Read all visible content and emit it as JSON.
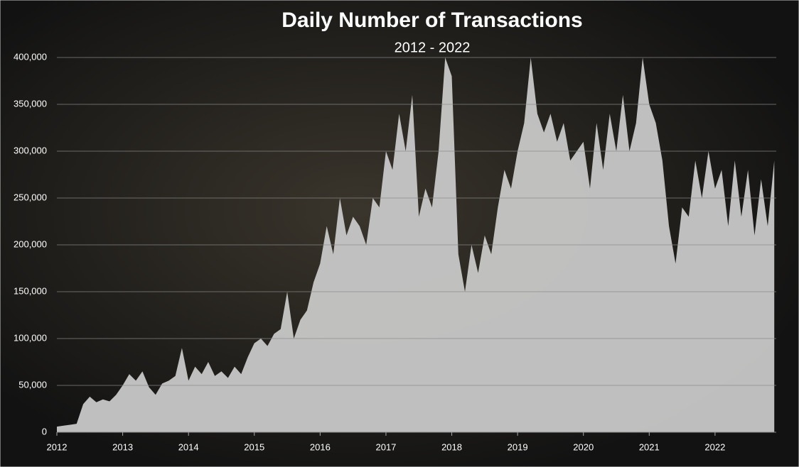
{
  "chart_data": {
    "type": "area",
    "title": "Daily Number of Transactions",
    "subtitle": "2012 - 2022",
    "color": "#c8c8c8",
    "grid": true,
    "xlim": [
      2012,
      2022.93
    ],
    "xticks": [
      2012,
      2013,
      2014,
      2015,
      2016,
      2017,
      2018,
      2019,
      2020,
      2021,
      2022
    ],
    "ylim": [
      0,
      400000
    ],
    "yticks": [
      0,
      {
        "value": 50000,
        "label": "50,000"
      },
      {
        "value": 100000,
        "label": "100,000"
      },
      {
        "value": 150000,
        "label": "150,000"
      },
      {
        "value": 200000,
        "label": "200,000"
      },
      {
        "value": 250000,
        "label": "250,000"
      },
      {
        "value": 300000,
        "label": "300,000"
      },
      {
        "value": 350000,
        "label": "350,000"
      },
      {
        "value": 400000,
        "label": "400,000"
      }
    ],
    "x": [
      2012.0,
      2012.1,
      2012.2,
      2012.3,
      2012.4,
      2012.5,
      2012.6,
      2012.7,
      2012.8,
      2012.9,
      2013.0,
      2013.1,
      2013.2,
      2013.3,
      2013.4,
      2013.5,
      2013.6,
      2013.7,
      2013.8,
      2013.9,
      2014.0,
      2014.1,
      2014.2,
      2014.3,
      2014.4,
      2014.5,
      2014.6,
      2014.7,
      2014.8,
      2014.9,
      2015.0,
      2015.1,
      2015.2,
      2015.3,
      2015.4,
      2015.5,
      2015.6,
      2015.7,
      2015.8,
      2015.9,
      2016.0,
      2016.1,
      2016.2,
      2016.3,
      2016.4,
      2016.5,
      2016.6,
      2016.7,
      2016.8,
      2016.9,
      2017.0,
      2017.1,
      2017.2,
      2017.3,
      2017.4,
      2017.5,
      2017.6,
      2017.7,
      2017.8,
      2017.9,
      2018.0,
      2018.1,
      2018.2,
      2018.3,
      2018.4,
      2018.5,
      2018.6,
      2018.7,
      2018.8,
      2018.9,
      2019.0,
      2019.1,
      2019.2,
      2019.3,
      2019.4,
      2019.5,
      2019.6,
      2019.7,
      2019.8,
      2019.9,
      2020.0,
      2020.1,
      2020.2,
      2020.3,
      2020.4,
      2020.5,
      2020.6,
      2020.7,
      2020.8,
      2020.9,
      2021.0,
      2021.1,
      2021.2,
      2021.3,
      2021.4,
      2021.5,
      2021.6,
      2021.7,
      2021.8,
      2021.9,
      2022.0,
      2022.1,
      2022.2,
      2022.3,
      2022.4,
      2022.5,
      2022.6,
      2022.7,
      2022.8,
      2022.9
    ],
    "values": [
      6000,
      7000,
      8000,
      9000,
      30000,
      38000,
      32000,
      35000,
      33000,
      40000,
      50000,
      62000,
      55000,
      65000,
      48000,
      40000,
      52000,
      55000,
      60000,
      90000,
      55000,
      70000,
      62000,
      75000,
      60000,
      65000,
      58000,
      70000,
      62000,
      80000,
      95000,
      100000,
      92000,
      105000,
      110000,
      150000,
      100000,
      120000,
      130000,
      160000,
      180000,
      220000,
      190000,
      250000,
      210000,
      230000,
      220000,
      200000,
      250000,
      240000,
      300000,
      280000,
      340000,
      300000,
      360000,
      230000,
      260000,
      240000,
      300000,
      400000,
      380000,
      190000,
      150000,
      200000,
      170000,
      210000,
      190000,
      240000,
      280000,
      260000,
      300000,
      330000,
      400000,
      340000,
      320000,
      340000,
      310000,
      330000,
      290000,
      300000,
      310000,
      260000,
      330000,
      280000,
      340000,
      300000,
      360000,
      300000,
      330000,
      400000,
      350000,
      330000,
      290000,
      220000,
      180000,
      240000,
      230000,
      290000,
      250000,
      300000,
      260000,
      280000,
      220000,
      290000,
      230000,
      280000,
      210000,
      270000,
      220000,
      290000
    ]
  }
}
